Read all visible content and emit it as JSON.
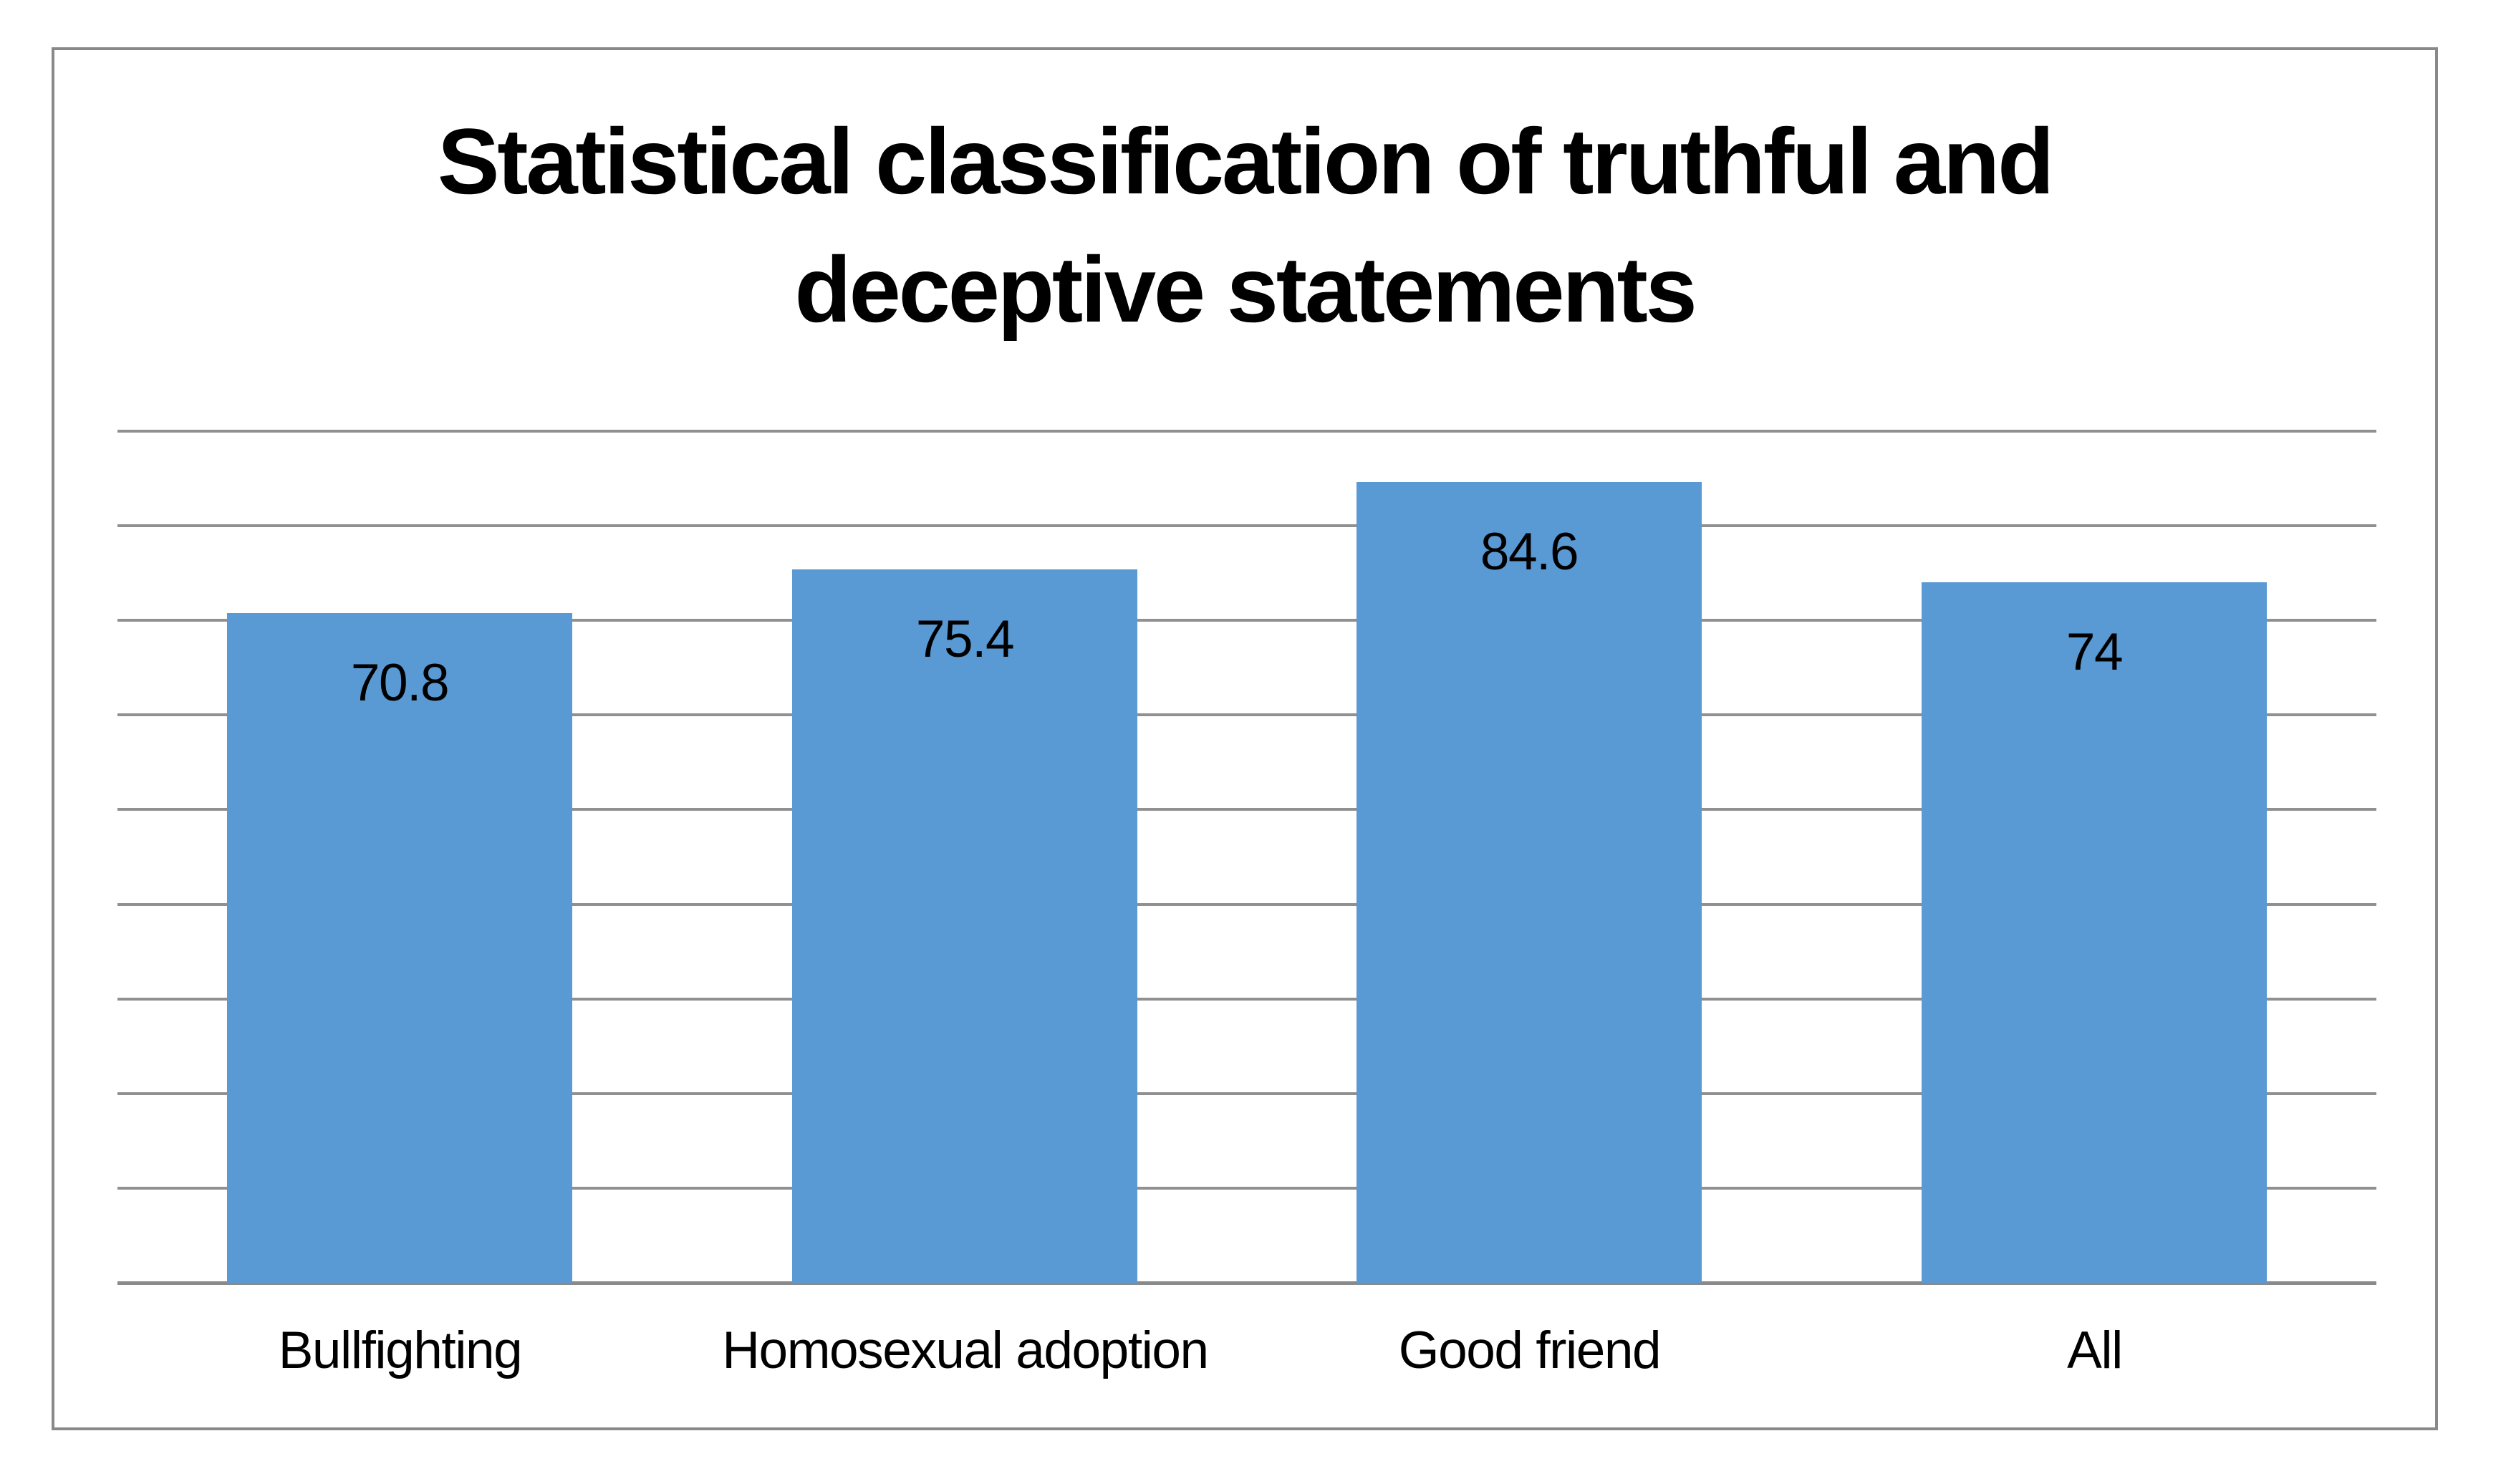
{
  "chart_title": "Statistical classification of truthful and deceptive statements",
  "chart_title_lines": [
    "Statistical classification of truthful and",
    "deceptive statements"
  ],
  "chart_data": {
    "type": "bar",
    "title": "Statistical classification of truthful and deceptive statements",
    "categories": [
      "Bullfighting",
      "Homosexual adoption",
      "Good friend",
      "All"
    ],
    "values": [
      70.8,
      75.4,
      84.6,
      74
    ],
    "value_labels": [
      "70.8",
      "75.4",
      "84.6",
      "74"
    ],
    "xlabel": "",
    "ylabel": "",
    "ylim": [
      0,
      90
    ],
    "gridline_interval": 10,
    "gridline_count": 10,
    "grid": "horizontal gridlines on, no y-axis tick labels, no legend",
    "legend_position": "none",
    "data_label_position": "inside-top",
    "colors": {
      "bar_fill": "#5999D4",
      "gridline": "#909090",
      "axis_line": "#8A8A8A",
      "chart_border": "#898989",
      "text": "#000000",
      "background": "#FFFFFF"
    }
  }
}
